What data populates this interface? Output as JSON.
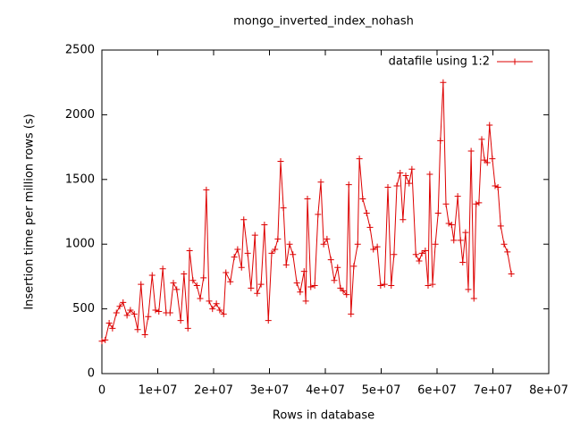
{
  "chart_data": {
    "type": "line",
    "title": "mongo_inverted_index_nohash",
    "x_label": "Rows in database",
    "y_label": "Insertion time per million rows (s)",
    "xlim": [
      0,
      80000000
    ],
    "ylim": [
      0,
      2500
    ],
    "xticks": [
      0,
      {
        "value": 10000000,
        "label": "1e+07"
      },
      {
        "value": 20000000,
        "label": "2e+07"
      },
      {
        "value": 30000000,
        "label": "3e+07"
      },
      {
        "value": 40000000,
        "label": "4e+07"
      },
      {
        "value": 50000000,
        "label": "5e+07"
      },
      {
        "value": 60000000,
        "label": "6e+07"
      },
      {
        "value": 70000000,
        "label": "7e+07"
      },
      {
        "value": 80000000,
        "label": "8e+07"
      }
    ],
    "yticks": [
      0,
      500,
      1000,
      1500,
      2000,
      2500
    ],
    "legend": "top right",
    "series": [
      {
        "name": "datafile using 1:2",
        "color": "#dd0000",
        "x": [
          0,
          600000,
          1300000,
          1900000,
          2600000,
          3200000,
          3800000,
          4500000,
          5100000,
          5800000,
          6400000,
          7000000,
          7700000,
          8300000,
          9000000,
          9600000,
          10200000,
          10900000,
          11500000,
          12200000,
          12800000,
          13400000,
          14100000,
          14700000,
          15400000,
          15700000,
          16300000,
          17000000,
          17600000,
          18200000,
          18700000,
          19200000,
          19800000,
          20500000,
          21100000,
          21800000,
          22200000,
          23000000,
          23700000,
          24300000,
          25000000,
          25400000,
          26100000,
          26700000,
          27400000,
          27800000,
          28500000,
          29100000,
          29800000,
          30400000,
          31000000,
          31500000,
          32000000,
          32500000,
          33000000,
          33600000,
          34200000,
          34900000,
          35500000,
          36200000,
          36500000,
          36800000,
          37400000,
          38100000,
          38700000,
          39200000,
          39700000,
          40300000,
          41000000,
          41600000,
          42200000,
          42700000,
          43200000,
          43800000,
          44200000,
          44600000,
          45100000,
          45800000,
          46100000,
          46700000,
          47400000,
          48000000,
          48600000,
          49300000,
          49900000,
          50600000,
          51200000,
          51800000,
          52300000,
          52800000,
          53400000,
          53900000,
          54400000,
          55000000,
          55500000,
          56200000,
          56800000,
          57300000,
          57900000,
          58400000,
          58700000,
          59200000,
          59700000,
          60200000,
          60600000,
          61100000,
          61600000,
          62100000,
          62600000,
          63000000,
          63700000,
          64200000,
          64600000,
          65100000,
          65600000,
          66100000,
          66600000,
          67000000,
          67500000,
          68000000,
          68500000,
          69000000,
          69400000,
          69900000,
          70400000,
          70900000,
          71400000,
          72000000,
          72600000,
          73300000
        ],
        "values": [
          250,
          260,
          390,
          350,
          470,
          520,
          550,
          450,
          490,
          460,
          340,
          690,
          300,
          440,
          760,
          490,
          480,
          810,
          470,
          470,
          700,
          650,
          410,
          770,
          350,
          950,
          720,
          680,
          580,
          740,
          1420,
          560,
          500,
          540,
          490,
          460,
          780,
          710,
          900,
          960,
          820,
          1190,
          930,
          660,
          1070,
          620,
          690,
          1150,
          410,
          930,
          960,
          1040,
          1640,
          1280,
          840,
          1000,
          920,
          700,
          630,
          790,
          560,
          1350,
          670,
          680,
          1230,
          1480,
          1000,
          1040,
          880,
          720,
          820,
          660,
          640,
          610,
          1460,
          460,
          830,
          1000,
          1660,
          1350,
          1240,
          1130,
          960,
          980,
          680,
          690,
          1440,
          680,
          920,
          1450,
          1550,
          1190,
          1530,
          1470,
          1580,
          920,
          870,
          930,
          950,
          680,
          1540,
          690,
          1000,
          1240,
          1800,
          2250,
          1310,
          1160,
          1150,
          1030,
          1370,
          1030,
          860,
          1090,
          650,
          1720,
          580,
          1310,
          1320,
          1810,
          1650,
          1630,
          1920,
          1660,
          1450,
          1440,
          1140,
          1000,
          940,
          770
        ]
      }
    ]
  }
}
